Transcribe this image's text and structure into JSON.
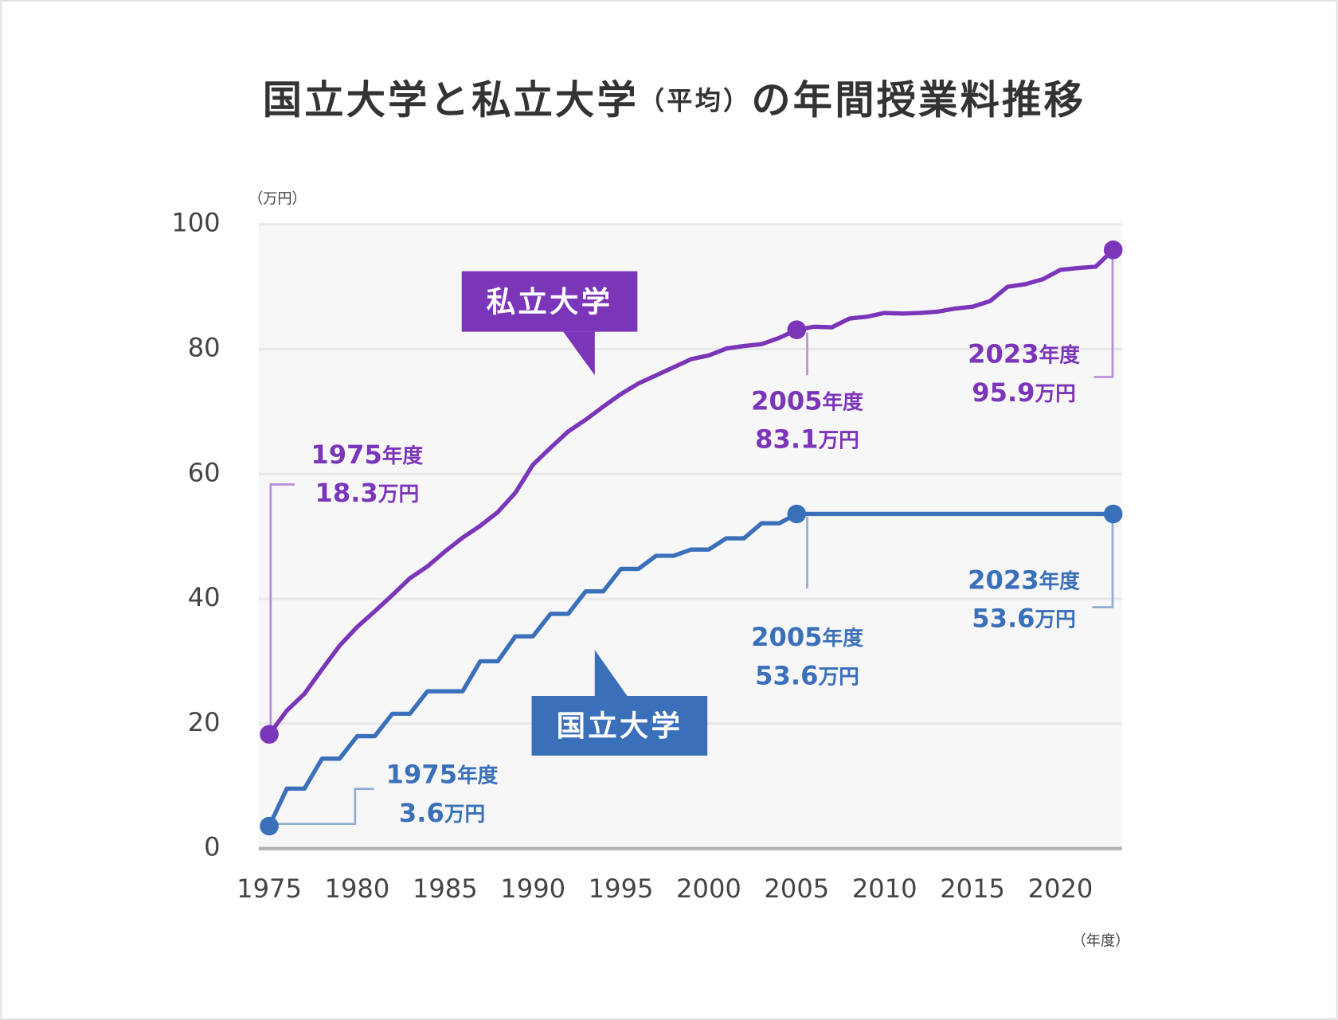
{
  "chart_data": {
    "type": "line",
    "title": "国立大学と私立大学（平均）の年間授業料推移",
    "y_unit": "（万円）",
    "x_unit": "（年度）",
    "x": [
      1975,
      1976,
      1977,
      1978,
      1979,
      1980,
      1981,
      1982,
      1983,
      1984,
      1985,
      1986,
      1987,
      1988,
      1989,
      1990,
      1991,
      1992,
      1993,
      1994,
      1995,
      1996,
      1997,
      1998,
      1999,
      2000,
      2001,
      2002,
      2003,
      2004,
      2005,
      2006,
      2007,
      2008,
      2009,
      2010,
      2011,
      2012,
      2013,
      2014,
      2015,
      2016,
      2017,
      2018,
      2019,
      2020,
      2021,
      2022,
      2023
    ],
    "xlim": [
      1974.4,
      2023.5
    ],
    "xticks": [
      1975,
      1980,
      1985,
      1990,
      1995,
      2000,
      2005,
      2010,
      2015,
      2020
    ],
    "ylim": [
      0,
      100
    ],
    "yticks": [
      0,
      20,
      40,
      60,
      80,
      100
    ],
    "grid": true,
    "series": [
      {
        "name": "私立大学",
        "color": "#7b35b8",
        "line_color": "#b68ee0",
        "values": [
          18.3,
          22.1,
          24.8,
          28.7,
          32.5,
          35.5,
          38.0,
          40.6,
          43.3,
          45.2,
          47.6,
          49.8,
          51.7,
          53.9,
          57.0,
          61.5,
          64.2,
          66.8,
          68.7,
          70.8,
          72.8,
          74.5,
          75.8,
          77.1,
          78.4,
          79.0,
          80.1,
          80.5,
          80.8,
          81.8,
          83.1,
          83.6,
          83.5,
          84.9,
          85.2,
          85.8,
          85.7,
          85.8,
          86.0,
          86.5,
          86.8,
          87.7,
          90.0,
          90.4,
          91.2,
          92.7,
          93.0,
          93.2,
          95.9
        ],
        "point_labels": [
          "1975年度",
          null,
          null,
          null,
          null,
          null,
          null,
          null,
          null,
          null,
          null,
          null,
          null,
          null,
          null,
          null,
          null,
          null,
          null,
          null,
          null,
          null,
          null,
          null,
          null,
          null,
          null,
          null,
          null,
          null,
          "2005年度",
          null,
          null,
          null,
          null,
          null,
          null,
          null,
          null,
          null,
          null,
          null,
          null,
          null,
          null,
          null,
          null,
          null,
          "2023年度"
        ],
        "value_labels": [
          "18.3万円",
          null,
          null,
          null,
          null,
          null,
          null,
          null,
          null,
          null,
          null,
          null,
          null,
          null,
          null,
          null,
          null,
          null,
          null,
          null,
          null,
          null,
          null,
          null,
          null,
          null,
          null,
          null,
          null,
          null,
          "83.1万円",
          null,
          null,
          null,
          null,
          null,
          null,
          null,
          null,
          null,
          null,
          null,
          null,
          null,
          null,
          null,
          null,
          null,
          "95.9万円"
        ]
      },
      {
        "name": "国立大学",
        "color": "#3a6fba",
        "line_color": "#8eaed6",
        "values": [
          3.6,
          9.6,
          9.6,
          14.4,
          14.4,
          18.0,
          18.0,
          21.6,
          21.6,
          25.2,
          25.2,
          25.2,
          30.0,
          30.0,
          34.0,
          34.0,
          37.6,
          37.6,
          41.2,
          41.2,
          44.8,
          44.8,
          46.9,
          46.9,
          47.9,
          47.9,
          49.7,
          49.7,
          52.1,
          52.1,
          53.6,
          53.6,
          53.6,
          53.6,
          53.6,
          53.6,
          53.6,
          53.6,
          53.6,
          53.6,
          53.6,
          53.6,
          53.6,
          53.6,
          53.6,
          53.6,
          53.6,
          53.6,
          53.6
        ],
        "point_labels": [
          "1975年度",
          null,
          null,
          null,
          null,
          null,
          null,
          null,
          null,
          null,
          null,
          null,
          null,
          null,
          null,
          null,
          null,
          null,
          null,
          null,
          null,
          null,
          null,
          null,
          null,
          null,
          null,
          null,
          null,
          null,
          "2005年度",
          null,
          null,
          null,
          null,
          null,
          null,
          null,
          null,
          null,
          null,
          null,
          null,
          null,
          null,
          null,
          null,
          null,
          "2023年度"
        ],
        "value_labels": [
          "3.6万円",
          null,
          null,
          null,
          null,
          null,
          null,
          null,
          null,
          null,
          null,
          null,
          null,
          null,
          null,
          null,
          null,
          null,
          null,
          null,
          null,
          null,
          null,
          null,
          null,
          null,
          null,
          null,
          null,
          null,
          "53.6万円",
          null,
          null,
          null,
          null,
          null,
          null,
          null,
          null,
          null,
          null,
          null,
          null,
          null,
          null,
          null,
          null,
          null,
          "53.6万円"
        ]
      }
    ]
  }
}
